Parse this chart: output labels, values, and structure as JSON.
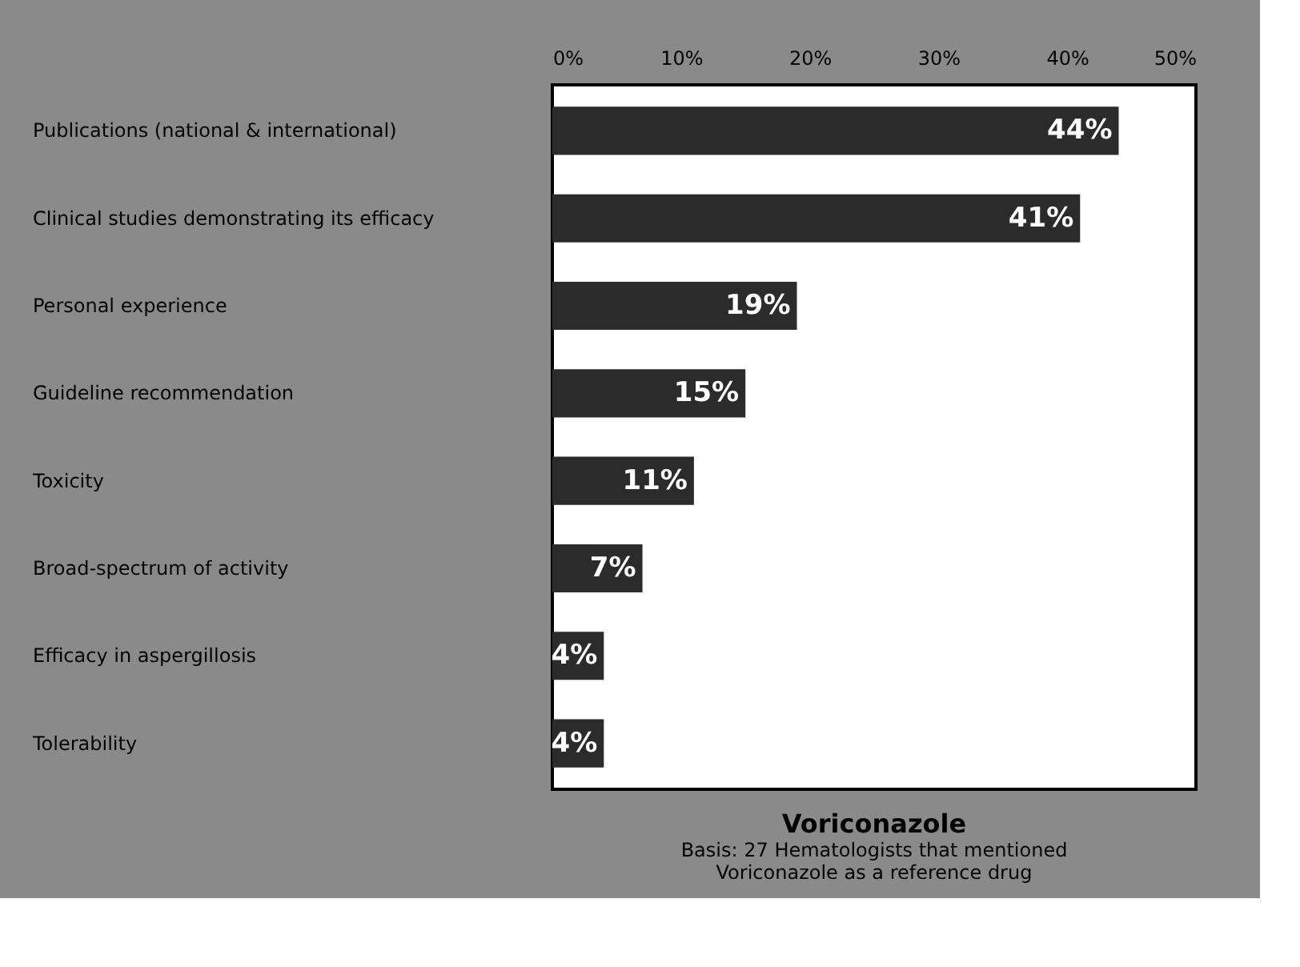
{
  "chart_data": {
    "type": "bar",
    "orientation": "horizontal",
    "title": "Voriconazole",
    "subtitle": "Basis: 27 Hematologists that mentioned\nVoriconazole as a reference drug",
    "categories": [
      "Publications (national & international)",
      "Clinical studies demonstrating its efficacy",
      "Personal experience",
      "Guideline recommendation",
      "Toxicity",
      "Broad-spectrum of activity",
      "Efficacy in aspergillosis",
      "Tolerability"
    ],
    "values": [
      44,
      41,
      19,
      15,
      11,
      7,
      4,
      4
    ],
    "value_labels": [
      "44%",
      "41%",
      "19%",
      "15%",
      "11%",
      "7%",
      "4%",
      "4%"
    ],
    "color": "#2b2b2b",
    "xlim": [
      0,
      50
    ],
    "xticks": [
      {
        "value": 0,
        "label": "0%"
      },
      {
        "value": 10,
        "label": "10%"
      },
      {
        "value": 20,
        "label": "20%"
      },
      {
        "value": 30,
        "label": "30%"
      },
      {
        "value": 40,
        "label": "40%"
      },
      {
        "value": 50,
        "label": "50%"
      }
    ],
    "grid": false
  }
}
